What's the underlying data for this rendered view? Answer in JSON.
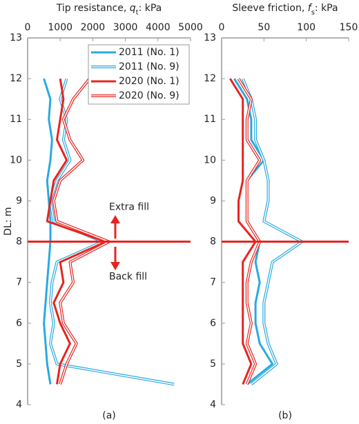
{
  "chart_data": [
    {
      "type": "line",
      "xlabel_parts": [
        "Tip resistance, ",
        "q",
        "t",
        ": kPa"
      ],
      "ylabel": "DL: m",
      "panel_label": "(a)",
      "xlim": [
        0,
        5000
      ],
      "xticks": [
        0,
        1000,
        2000,
        3000,
        4000,
        5000
      ],
      "ylim": [
        4,
        13
      ],
      "yticks": [
        4,
        5,
        6,
        7,
        8,
        9,
        10,
        11,
        12,
        13
      ],
      "y": [
        4.5,
        5,
        5.5,
        6,
        6.5,
        7,
        7.5,
        8,
        8.5,
        9,
        9.5,
        10,
        10.5,
        11,
        11.5,
        12
      ],
      "hline": 8,
      "annotations": [
        "Extra fill",
        "Back fill"
      ],
      "legend": true,
      "series": [
        {
          "name": "2011 (No. 1)",
          "color": "#29a9e0",
          "style": "solid",
          "values": [
            700,
            600,
            550,
            500,
            550,
            600,
            650,
            700,
            700,
            650,
            600,
            700,
            750,
            650,
            700,
            500
          ]
        },
        {
          "name": "2011 (No. 9)",
          "color": "#29a9e0",
          "style": "double",
          "values": [
            4500,
            900,
            700,
            800,
            700,
            750,
            900,
            2300,
            800,
            700,
            900,
            1300,
            1100,
            1200,
            1000,
            1200
          ]
        },
        {
          "name": "2020 (No. 1)",
          "color": "#e8231f",
          "style": "solid",
          "values": [
            900,
            1000,
            1300,
            1000,
            800,
            1100,
            1000,
            2400,
            600,
            700,
            800,
            1200,
            900,
            1000,
            1100,
            1000
          ]
        },
        {
          "name": "2020 (No. 9)",
          "color": "#e8231f",
          "style": "double",
          "values": [
            1000,
            1200,
            1500,
            1100,
            1000,
            1400,
            1300,
            2500,
            900,
            800,
            1000,
            1700,
            1300,
            1100,
            1400,
            1900
          ]
        }
      ]
    },
    {
      "type": "line",
      "xlabel_parts": [
        "Sleeve friction, ",
        "f",
        "s",
        ": kPa"
      ],
      "panel_label": "(b)",
      "xlim": [
        0,
        150
      ],
      "xticks": [
        0,
        50,
        100,
        150
      ],
      "ylim": [
        4,
        13
      ],
      "yticks": [
        4,
        5,
        6,
        7,
        8,
        9,
        10,
        11,
        12,
        13
      ],
      "y": [
        4.5,
        5,
        5.5,
        6,
        6.5,
        7,
        7.5,
        8,
        8.5,
        9,
        9.5,
        10,
        10.5,
        11,
        11.5,
        12
      ],
      "hline": 8,
      "series": [
        {
          "color": "#29a9e0",
          "style": "solid",
          "values": [
            30,
            60,
            45,
            40,
            40,
            45,
            40,
            45,
            30,
            30,
            30,
            50,
            35,
            35,
            30,
            15
          ]
        },
        {
          "color": "#29a9e0",
          "style": "double",
          "values": [
            35,
            65,
            55,
            50,
            50,
            55,
            60,
            95,
            50,
            55,
            55,
            50,
            40,
            40,
            35,
            25
          ]
        },
        {
          "color": "#e8231f",
          "style": "solid",
          "values": [
            25,
            35,
            25,
            25,
            25,
            25,
            25,
            40,
            20,
            20,
            25,
            25,
            25,
            25,
            25,
            10
          ]
        },
        {
          "color": "#e8231f",
          "style": "double",
          "values": [
            30,
            40,
            30,
            35,
            30,
            30,
            35,
            45,
            30,
            30,
            30,
            45,
            30,
            30,
            35,
            20
          ]
        }
      ]
    }
  ]
}
